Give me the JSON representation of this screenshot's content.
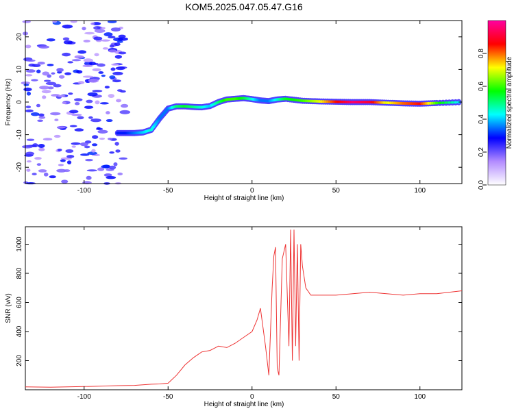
{
  "title": "KOM5.2025.047.05.47.G16",
  "chart_data": [
    {
      "type": "heatmap",
      "xlabel": "Height of straight line (km)",
      "ylabel": "Frequency (Hz)",
      "xlim": [
        -135,
        125
      ],
      "ylim": [
        -25,
        25
      ],
      "xticks": [
        -100,
        -50,
        0,
        50,
        100
      ],
      "yticks": [
        -20,
        -10,
        0,
        10,
        20
      ],
      "colorbar": {
        "label": "Normalized spectral amplitude",
        "range": [
          0,
          1
        ],
        "ticks": [
          0.0,
          0.2,
          0.4,
          0.6,
          0.8
        ],
        "tick_labels": [
          "0.0",
          "0.2",
          "0.4",
          "0.6",
          "0.8"
        ],
        "colormap": [
          "#ffffff",
          "#b38cff",
          "#0000ff",
          "#00ffff",
          "#00ff00",
          "#ffff00",
          "#ff0000",
          "#ff00a0"
        ]
      },
      "ridge": {
        "x": [
          -80,
          -75,
          -70,
          -65,
          -60,
          -55,
          -50,
          -45,
          -40,
          -35,
          -30,
          -25,
          -20,
          -15,
          -10,
          -5,
          0,
          5,
          10,
          15,
          20,
          30,
          40,
          50,
          60,
          70,
          80,
          90,
          100,
          110,
          125
        ],
        "freq": [
          -9.5,
          -9.5,
          -9.5,
          -9.3,
          -8.5,
          -5,
          -2,
          -1.3,
          -1.3,
          -1.5,
          -1.6,
          -1.2,
          0,
          0.8,
          1,
          1.2,
          0.9,
          0.5,
          0.3,
          0.8,
          1,
          0.4,
          0.2,
          0.1,
          0,
          0,
          -0.2,
          -0.4,
          -0.5,
          -0.3,
          0
        ],
        "amplitude": [
          0.3,
          0.3,
          0.35,
          0.4,
          0.45,
          0.35,
          0.35,
          0.5,
          0.55,
          0.5,
          0.45,
          0.4,
          0.5,
          0.6,
          0.6,
          0.55,
          0.45,
          0.35,
          0.35,
          0.45,
          0.55,
          0.6,
          0.7,
          0.85,
          0.95,
          0.9,
          0.7,
          0.8,
          0.85,
          0.6,
          0.4
        ]
      }
    },
    {
      "type": "line",
      "xlabel": "Height of straight line (km)",
      "ylabel": "SNR (v/v)",
      "xlim": [
        -135,
        125
      ],
      "ylim": [
        0,
        1120
      ],
      "xticks": [
        -100,
        -50,
        0,
        50,
        100
      ],
      "yticks": [
        200,
        400,
        600,
        800,
        1000
      ],
      "color": "#ee3333",
      "series": [
        {
          "x": [
            -135,
            -120,
            -100,
            -80,
            -70,
            -60,
            -55,
            -50,
            -45,
            -40,
            -35,
            -30,
            -25,
            -20,
            -15,
            -10,
            -5,
            0,
            3,
            5,
            8,
            10,
            12,
            13,
            14,
            15,
            16,
            18,
            20,
            22,
            23,
            24,
            25,
            26,
            27,
            28,
            29,
            30,
            32,
            35,
            40,
            50,
            60,
            70,
            80,
            90,
            100,
            110,
            125
          ],
          "values": [
            20,
            18,
            22,
            28,
            30,
            38,
            40,
            45,
            100,
            170,
            220,
            260,
            270,
            300,
            290,
            320,
            360,
            400,
            480,
            560,
            300,
            100,
            700,
            920,
            980,
            150,
            100,
            900,
            1000,
            300,
            1100,
            200,
            1100,
            300,
            1000,
            200,
            1000,
            850,
            700,
            650,
            650,
            650,
            660,
            670,
            660,
            650,
            660,
            660,
            680
          ]
        }
      ]
    }
  ]
}
